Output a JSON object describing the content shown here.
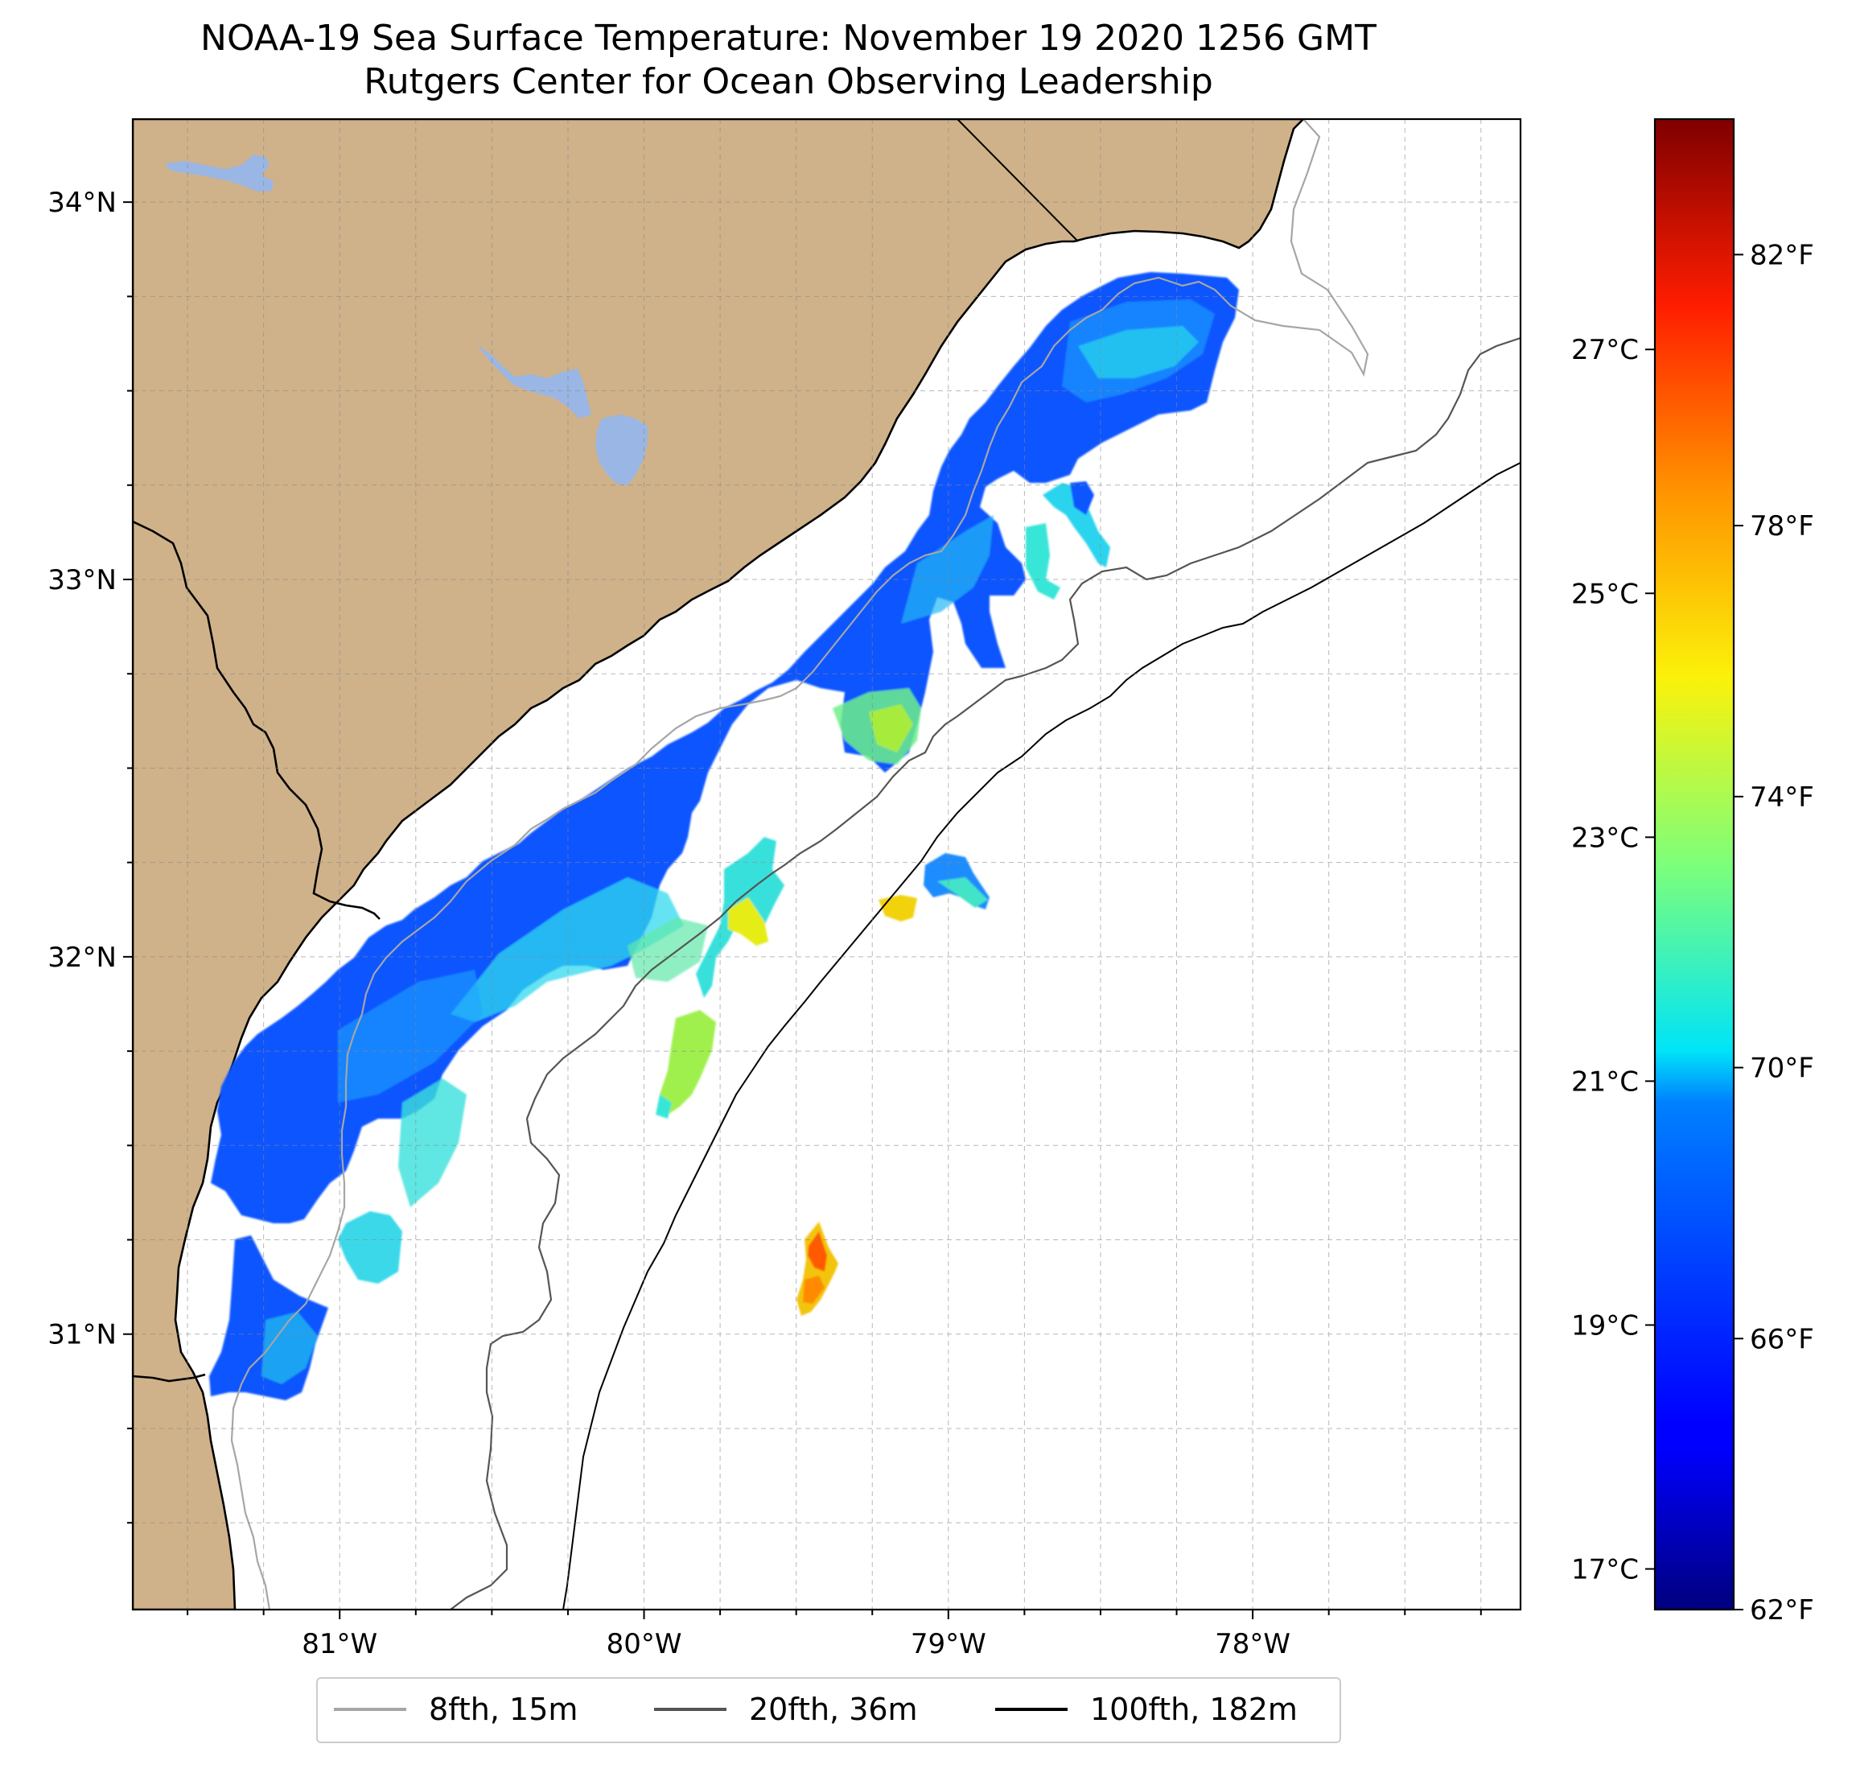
{
  "title": "NOAA-19 Sea Surface Temperature: November 19 2020 1256 GMT",
  "subtitle": "Rutgers Center for Ocean Observing Leadership",
  "map": {
    "lon_range": [
      -81.68,
      -77.12
    ],
    "lat_range": [
      30.27,
      34.22
    ],
    "lat_ticks": [
      {
        "value": 34,
        "label": "34°N"
      },
      {
        "value": 33,
        "label": "33°N"
      },
      {
        "value": 32,
        "label": "32°N"
      },
      {
        "value": 31,
        "label": "31°N"
      }
    ],
    "lon_ticks": [
      {
        "value": -81,
        "label": "81°W"
      },
      {
        "value": -80,
        "label": "80°W"
      },
      {
        "value": -79,
        "label": "79°W"
      },
      {
        "value": -78,
        "label": "78°W"
      }
    ],
    "grid": "dashed, 0.25° spacing",
    "land_color": "#cfb28a",
    "lake_color": "#9ab6e4",
    "ocean_color": "#ffffff",
    "isobaths": [
      {
        "label": "8fth, 15m",
        "color": "#a6a6a6"
      },
      {
        "label": "20fth, 36m",
        "color": "#555555"
      },
      {
        "label": "100fth, 182m",
        "color": "#000000"
      }
    ]
  },
  "colorbar": {
    "colormap": "jet",
    "celsius_ticks": [
      "27°C",
      "25°C",
      "23°C",
      "21°C",
      "19°C",
      "17°C"
    ],
    "fahrenheit_ticks": [
      "82°F",
      "78°F",
      "74°F",
      "70°F",
      "66°F",
      "62°F"
    ],
    "range_f": [
      62,
      84
    ]
  }
}
